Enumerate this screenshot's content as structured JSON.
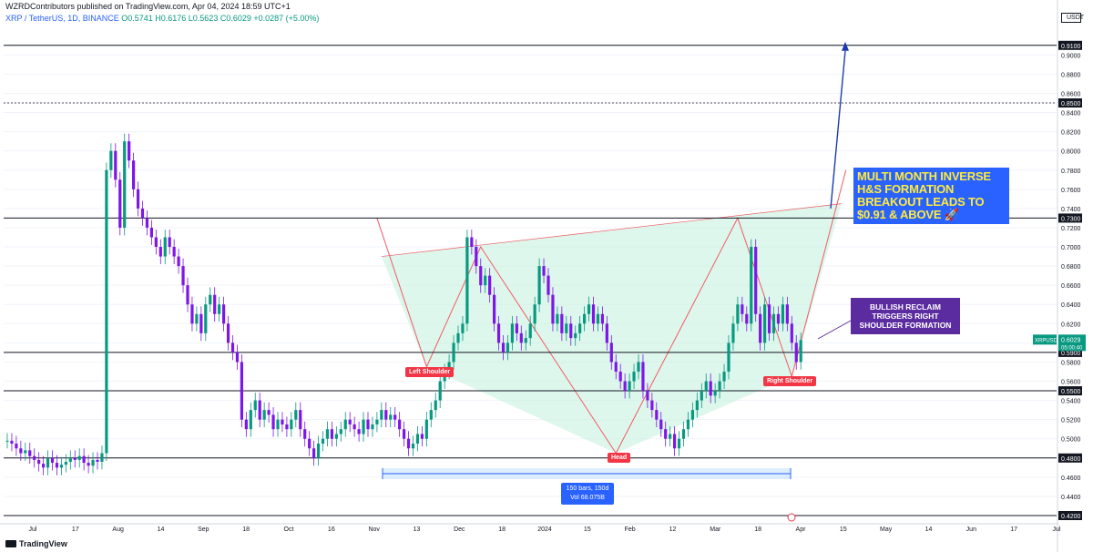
{
  "header": {
    "published": "WZRDContributors published on TradingView.com, Apr 04, 2024 18:59 UTC+1",
    "symbol_line": "XRP / TetherUS, 1D, BINANCE",
    "ohlc": "O0.5741 H0.6176 L0.5623 C0.6029 +0.0287 (+5.00%)"
  },
  "currency": "USDT",
  "logo_text": "TradingView",
  "annotations": {
    "main_note": "MULTI MONTH INVERSE H&S FORMATION BREAKOUT LEADS TO $0.91 & ABOVE 🚀",
    "right_note": "BULLISH RECLAIM TRIGGERS RIGHT SHOULDER FORMATION",
    "left_shoulder": "Left Shoulder",
    "head": "Head",
    "right_shoulder": "Right Shoulder",
    "range_line1": "150 bars, 150d",
    "range_line2": "Vol 68.075B"
  },
  "price_badge": {
    "symbol": "XRPUSDT",
    "price": "0.6029",
    "countdown": "05:00:40"
  },
  "colors": {
    "up": "#089981",
    "down": "#7e16e8",
    "pattern_fill": "#c8f2df",
    "pattern_line": "#f05a64",
    "level_line": "#131722",
    "accent": "#2962ff"
  },
  "chart_data": {
    "type": "candlestick",
    "ylim": [
      0.42,
      0.925
    ],
    "y_ticks": [
      "0.9100",
      "0.9000",
      "0.8800",
      "0.8600",
      "0.8500",
      "0.8400",
      "0.8200",
      "0.8000",
      "0.7800",
      "0.7600",
      "0.7400",
      "0.7300",
      "0.7200",
      "0.7000",
      "0.6800",
      "0.6600",
      "0.6400",
      "0.6200",
      "0.6000",
      "0.5900",
      "0.5800",
      "0.5600",
      "0.5500",
      "0.5400",
      "0.5200",
      "0.5000",
      "0.4800",
      "0.4600",
      "0.4400",
      "0.4200"
    ],
    "highlighted_levels": [
      "0.9100",
      "0.8500",
      "0.7300",
      "0.5900",
      "0.5500",
      "0.4800",
      "0.4200"
    ],
    "x_labels": [
      "Jul",
      "17",
      "Aug",
      "14",
      "Sep",
      "18",
      "Oct",
      "16",
      "Nov",
      "13",
      "Dec",
      "18",
      "2024",
      "15",
      "Feb",
      "12",
      "Mar",
      "18",
      "Apr",
      "15",
      "May",
      "14",
      "Jun",
      "17",
      "Jul"
    ],
    "horizontal_levels": [
      0.91,
      0.85,
      0.73,
      0.59,
      0.55,
      0.48,
      0.42
    ],
    "dashed_levels": [
      0.85
    ],
    "pattern_points": {
      "left_shoulder": 0.575,
      "head": 0.485,
      "right_shoulder": 0.565,
      "neckline_start": 0.69,
      "neckline_end": 0.745,
      "target": 0.91
    },
    "closes": [
      0.498,
      0.495,
      0.49,
      0.485,
      0.488,
      0.482,
      0.478,
      0.474,
      0.47,
      0.48,
      0.475,
      0.47,
      0.473,
      0.476,
      0.48,
      0.478,
      0.482,
      0.475,
      0.472,
      0.478,
      0.476,
      0.485,
      0.78,
      0.8,
      0.77,
      0.72,
      0.81,
      0.79,
      0.76,
      0.74,
      0.73,
      0.72,
      0.71,
      0.7,
      0.69,
      0.71,
      0.7,
      0.69,
      0.68,
      0.66,
      0.64,
      0.62,
      0.63,
      0.61,
      0.64,
      0.65,
      0.63,
      0.64,
      0.62,
      0.6,
      0.59,
      0.58,
      0.52,
      0.51,
      0.53,
      0.54,
      0.52,
      0.53,
      0.525,
      0.51,
      0.52,
      0.515,
      0.51,
      0.52,
      0.53,
      0.51,
      0.5,
      0.49,
      0.48,
      0.495,
      0.5,
      0.51,
      0.5,
      0.505,
      0.51,
      0.52,
      0.515,
      0.51,
      0.505,
      0.52,
      0.51,
      0.515,
      0.52,
      0.53,
      0.52,
      0.525,
      0.52,
      0.51,
      0.5,
      0.49,
      0.495,
      0.505,
      0.5,
      0.52,
      0.53,
      0.54,
      0.56,
      0.57,
      0.58,
      0.6,
      0.61,
      0.62,
      0.71,
      0.7,
      0.68,
      0.66,
      0.67,
      0.65,
      0.62,
      0.6,
      0.59,
      0.6,
      0.62,
      0.61,
      0.6,
      0.605,
      0.62,
      0.64,
      0.68,
      0.67,
      0.65,
      0.62,
      0.63,
      0.61,
      0.62,
      0.605,
      0.61,
      0.62,
      0.63,
      0.64,
      0.62,
      0.63,
      0.62,
      0.6,
      0.58,
      0.57,
      0.56,
      0.55,
      0.56,
      0.57,
      0.58,
      0.55,
      0.54,
      0.53,
      0.52,
      0.51,
      0.5,
      0.505,
      0.49,
      0.5,
      0.51,
      0.52,
      0.53,
      0.54,
      0.55,
      0.56,
      0.545,
      0.55,
      0.56,
      0.57,
      0.6,
      0.62,
      0.64,
      0.63,
      0.62,
      0.7,
      0.63,
      0.6,
      0.64,
      0.61,
      0.63,
      0.62,
      0.64,
      0.62,
      0.6,
      0.58,
      0.6029
    ]
  }
}
